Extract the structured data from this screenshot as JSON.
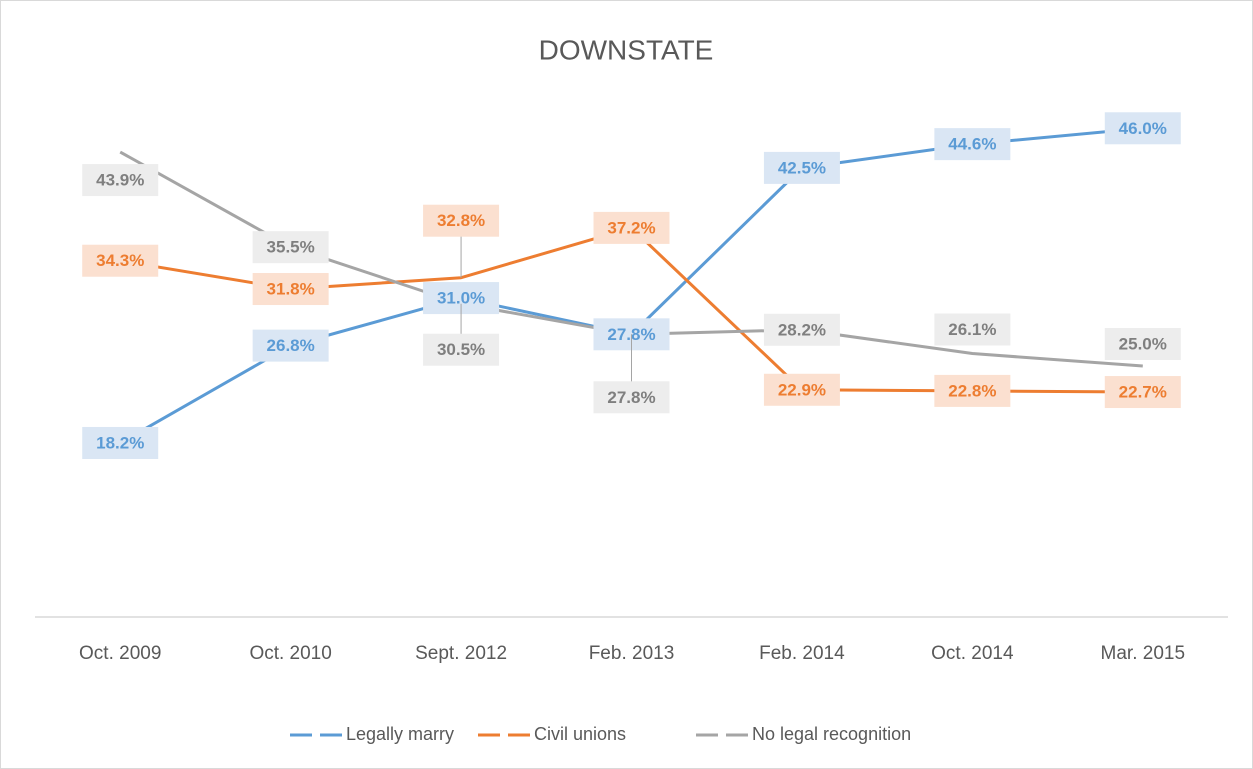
{
  "chart_data": {
    "type": "line",
    "title": "DOWNSTATE",
    "categories": [
      "Oct. 2009",
      "Oct. 2010",
      "Sept. 2012",
      "Feb. 2013",
      "Feb. 2014",
      "Oct. 2014",
      "Mar. 2015"
    ],
    "ylim": [
      0,
      50
    ],
    "legend": "bottom",
    "series": [
      {
        "name": "Legally marry",
        "color": "#5b9bd5",
        "values": [
          18.2,
          26.8,
          31.0,
          27.8,
          42.5,
          44.6,
          46.0
        ],
        "value_labels": [
          "18.2%",
          "26.8%",
          "31.0%",
          "27.8%",
          "42.5%",
          "44.6%",
          "46.0%"
        ]
      },
      {
        "name": "Civil unions",
        "color": "#ed7d31",
        "values": [
          34.3,
          31.8,
          32.8,
          37.2,
          22.9,
          22.8,
          22.7
        ],
        "value_labels": [
          "34.3%",
          "31.8%",
          "32.8%",
          "37.2%",
          "22.9%",
          "22.8%",
          "22.7%"
        ]
      },
      {
        "name": "No legal recognition",
        "color": "#a5a5a5",
        "values": [
          43.9,
          35.5,
          30.5,
          27.8,
          28.2,
          26.1,
          25.0
        ],
        "value_labels": [
          "43.9%",
          "35.5%",
          "30.5%",
          "27.8%",
          "28.2%",
          "26.1%",
          "25.0%"
        ]
      }
    ]
  }
}
